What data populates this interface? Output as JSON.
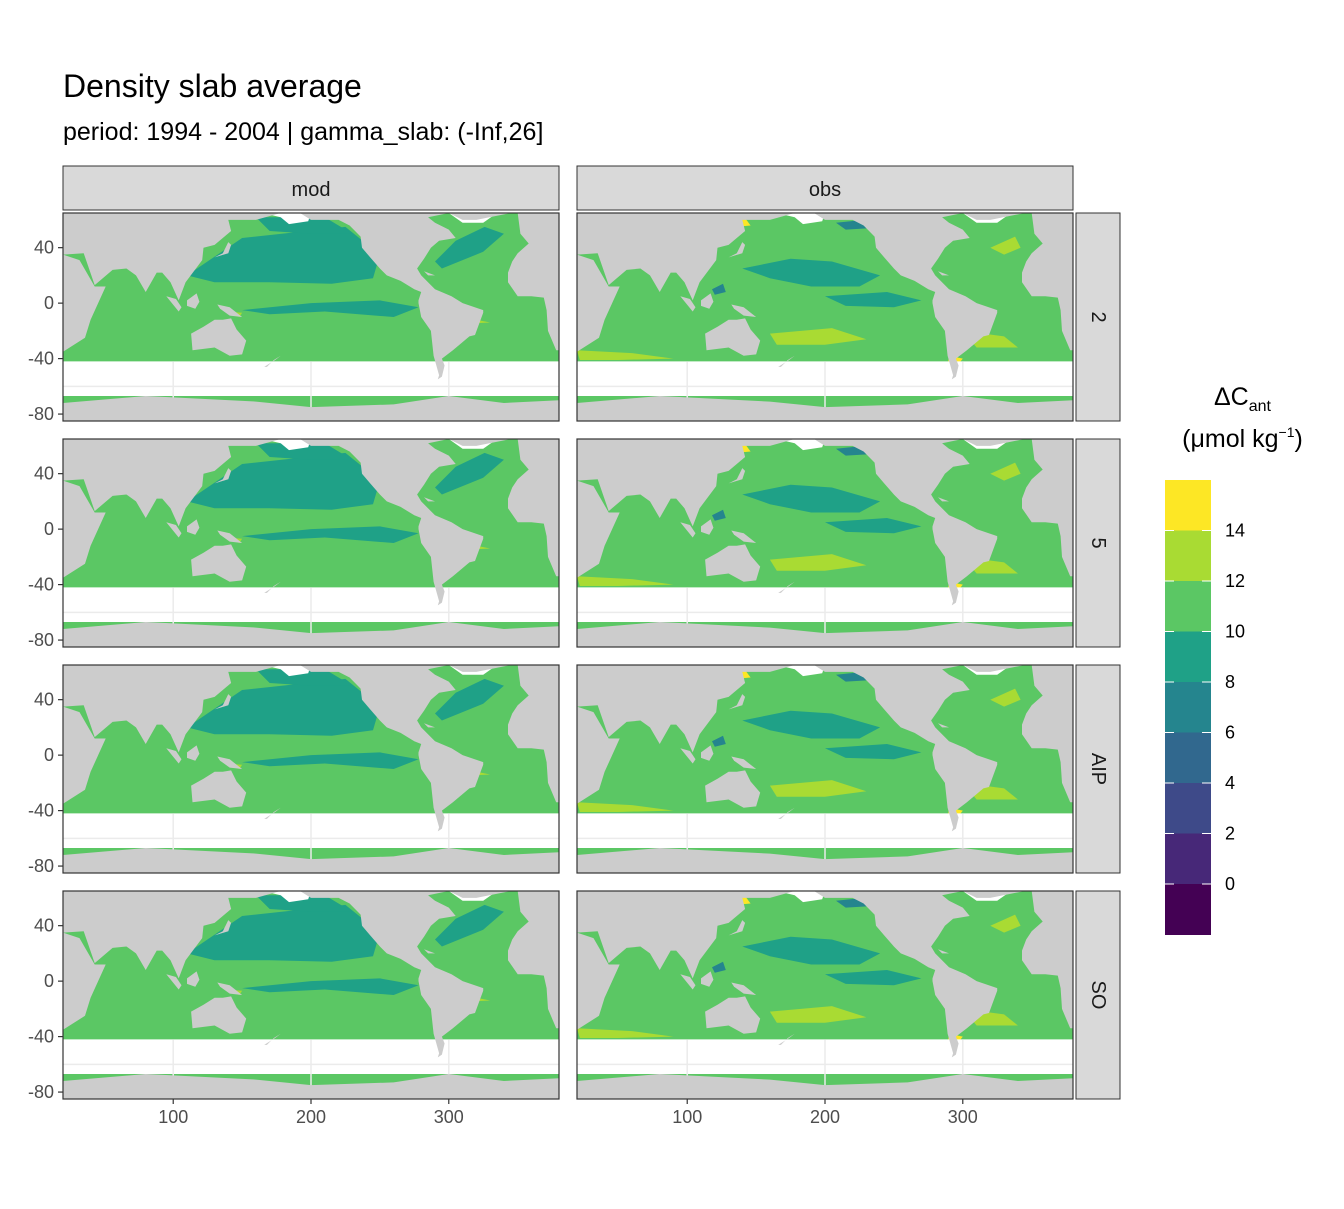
{
  "title": "Density slab average",
  "subtitle": "period: 1994 - 2004 | gamma_slab: (-Inf,26]",
  "facets": {
    "columns": [
      "mod",
      "obs"
    ],
    "rows": [
      "2",
      "5",
      "AIP",
      "SO"
    ]
  },
  "axes": {
    "x": {
      "range": [
        20,
        380
      ],
      "ticks": [
        100,
        200,
        300
      ]
    },
    "y": {
      "range": [
        -85,
        65
      ],
      "ticks": [
        40,
        0,
        -40,
        -80
      ]
    }
  },
  "legend": {
    "title_main": "ΔC",
    "title_sub": "ant",
    "unit_pre": "(μmol kg",
    "unit_sup": "−1",
    "unit_post": ")",
    "labels": [
      "14",
      "12",
      "10",
      "8",
      "6",
      "4",
      "2",
      "0"
    ],
    "bins": [
      {
        "from": -2,
        "to": 0,
        "color": "#440154"
      },
      {
        "from": 0,
        "to": 2,
        "color": "#472878"
      },
      {
        "from": 2,
        "to": 4,
        "color": "#3E4A89"
      },
      {
        "from": 4,
        "to": 6,
        "color": "#31688E"
      },
      {
        "from": 6,
        "to": 8,
        "color": "#25858E"
      },
      {
        "from": 8,
        "to": 10,
        "color": "#1FA187"
      },
      {
        "from": 10,
        "to": 12,
        "color": "#5BC764"
      },
      {
        "from": 12,
        "to": 14,
        "color": "#A9DB33"
      },
      {
        "from": 14,
        "to": 16,
        "color": "#FDE725"
      }
    ]
  },
  "colors": {
    "land": "#CCCCCC",
    "strip": "#D9D9D9",
    "grid": "#EBEBEB",
    "panel_border": "#333333"
  },
  "chart_data": {
    "type": "heatmap",
    "variable": "ΔCant",
    "approximate_fields": {
      "mod": "mostly 10–12 with 8–10 bands in the North/equatorial Pacific and North Atlantic",
      "obs": "mostly 10–12, patches of 12–14 and 14–16 at high latitudes and Southern Ocean edge, 6–8 patches in boundary regions"
    }
  }
}
